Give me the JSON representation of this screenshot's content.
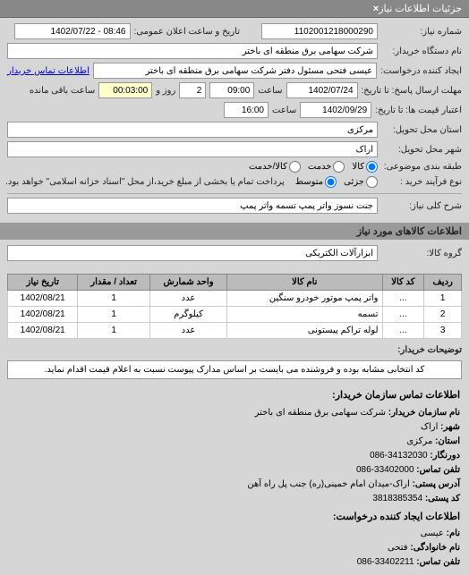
{
  "header": {
    "title": "جزئیات اطلاعات نیاز",
    "close": "×"
  },
  "fields": {
    "request_no_label": "شماره نیاز:",
    "request_no": "1102001218000290",
    "datetime_label": "تاریخ و ساعت اعلان عمومی:",
    "datetime": "08:46 - 1402/07/22",
    "org_label": "نام دستگاه خریدار:",
    "org": "شرکت سهامی برق منطقه ای باختر",
    "creator_label": "ایجاد کننده درخواست:",
    "creator": "عیسی فتحی مسئول دفتر شرکت سهامی برق منطقه ای باختر",
    "contact_link": "اطلاعات تماس خریدار",
    "deadline_label": "مهلت ارسال پاسخ: تا تاریخ:",
    "deadline_date": "1402/07/24",
    "deadline_time_label": "ساعت",
    "deadline_time": "09:00",
    "days_label": "روز و",
    "days": "2",
    "remain_label": "ساعت باقی مانده",
    "remain_time": "00:03:00",
    "validity_label": "اعتبار قیمت ها: تا تاریخ:",
    "validity_date": "1402/09/29",
    "validity_time_label": "ساعت",
    "validity_time": "16:00",
    "province_label": "استان محل تحویل:",
    "province": "مرکزی",
    "city_label": "شهر محل تحویل:",
    "city": "اراک",
    "class_label": "طبقه بندی موضوعی:",
    "class_opts": {
      "goods": "کالا",
      "service": "خدمت",
      "both": "کالا/خدمت"
    },
    "process_label": "نوع فرآیند خرید :",
    "process_opts": {
      "low": "جزئی",
      "mid": "متوسط"
    },
    "process_note": "پرداخت تمام یا بخشی از مبلغ خرید،از محل \"اسناد خزانه اسلامی\" خواهد بود.",
    "subject_label": "شرح کلی نیاز:",
    "subject": "جنت نسوز واتر پمپ تسمه واتر پمپ"
  },
  "goods": {
    "section_title": "اطلاعات کالاهای مورد نیاز",
    "group_label": "گروه کالا:",
    "group_value": "ابزارآلات الکتریکی",
    "columns": [
      "ردیف",
      "کد کالا",
      "نام کالا",
      "واحد شمارش",
      "تعداد / مقدار",
      "تاریخ نیاز"
    ],
    "rows": [
      {
        "idx": "1",
        "code": "...",
        "name": "واتر پمپ موتور خودرو سنگین",
        "unit": "عدد",
        "qty": "1",
        "date": "1402/08/21"
      },
      {
        "idx": "2",
        "code": "...",
        "name": "تسمه",
        "unit": "کیلوگرم",
        "qty": "1",
        "date": "1402/08/21"
      },
      {
        "idx": "3",
        "code": "...",
        "name": "لوله تراکم پیستونی",
        "unit": "عدد",
        "qty": "1",
        "date": "1402/08/21"
      }
    ]
  },
  "desc": {
    "label": "توضیحات خریدار:",
    "text": "کد انتخابی مشابه بوده و فروشنده می بایست بر اساس مدارک پیوست نسبت به اعلام قیمت اقدام نماید."
  },
  "contact": {
    "head1": "اطلاعات تماس سازمان خریدار:",
    "org_l": "نام سازمان خریدار:",
    "org_v": "شرکت سهامی برق منطقه ای باختر",
    "city_l": "شهر:",
    "city_v": "اراک",
    "prov_l": "استان:",
    "prov_v": "مرکزی",
    "fax_l": "دورنگار:",
    "fax_v": "34132030-086",
    "tel_l": "تلفن تماس:",
    "tel_v": "33402000-086",
    "addr_l": "آدرس پستی:",
    "addr_v": "اراک-میدان امام خمینی(ره) جنب پل راه آهن",
    "post_l": "کد پستی:",
    "post_v": "3818385354",
    "head2": "اطلاعات ایجاد کننده درخواست:",
    "name_l": "نام:",
    "name_v": "عیسی",
    "fam_l": "نام خانوادگی:",
    "fam_v": "فتحی",
    "tel2_l": "تلفن تماس:",
    "tel2_v": "33402211-086"
  }
}
